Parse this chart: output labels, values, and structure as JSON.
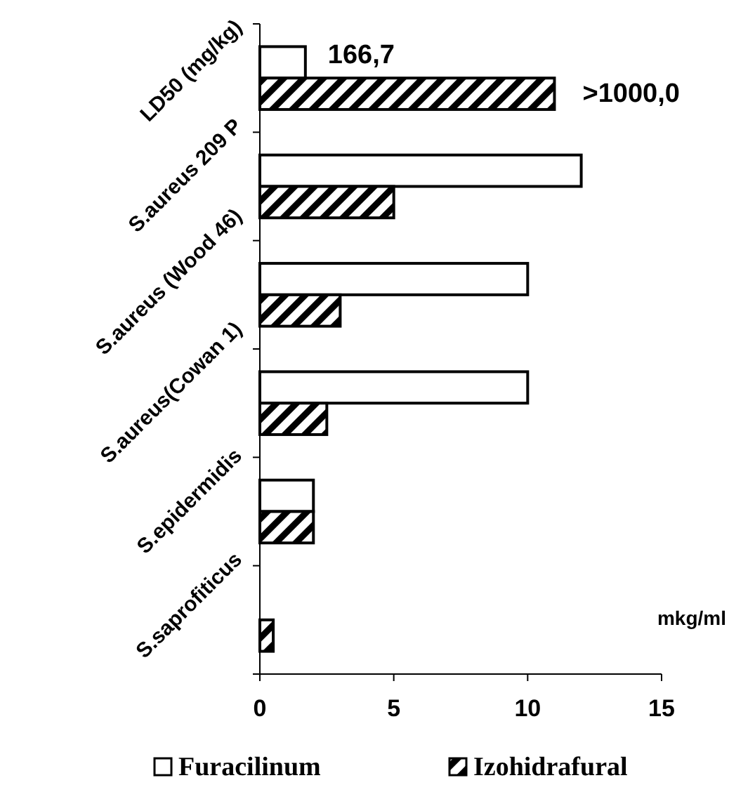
{
  "chart_data": {
    "type": "bar",
    "orientation": "horizontal",
    "categories": [
      "LD50 (mg/kg)",
      "S.aureus 209 P",
      "S.aureus (Wood 46)",
      "S.aureus(Cowan 1)",
      "S.epidermidis",
      "S.saprofiticus"
    ],
    "series": [
      {
        "name": "Furacilinum",
        "color": "#ffffff",
        "values": [
          1.7,
          12,
          10,
          10,
          2,
          null
        ]
      },
      {
        "name": "Izohidrafural",
        "color": "#000000",
        "values": [
          11,
          5,
          3,
          2.5,
          2,
          0.5
        ]
      }
    ],
    "xlim": [
      0,
      15
    ],
    "xticks": [
      0,
      5,
      10,
      15
    ],
    "annotations": [
      "mkg/ml",
      {
        "text": "166,7",
        "x": 1.7,
        "y": "LD50 (mg/kg)"
      },
      {
        "text": ">1000,0",
        "x": 11,
        "y": "LD50 (mg/kg)"
      }
    ],
    "legend": "bottom",
    "grid": false
  }
}
